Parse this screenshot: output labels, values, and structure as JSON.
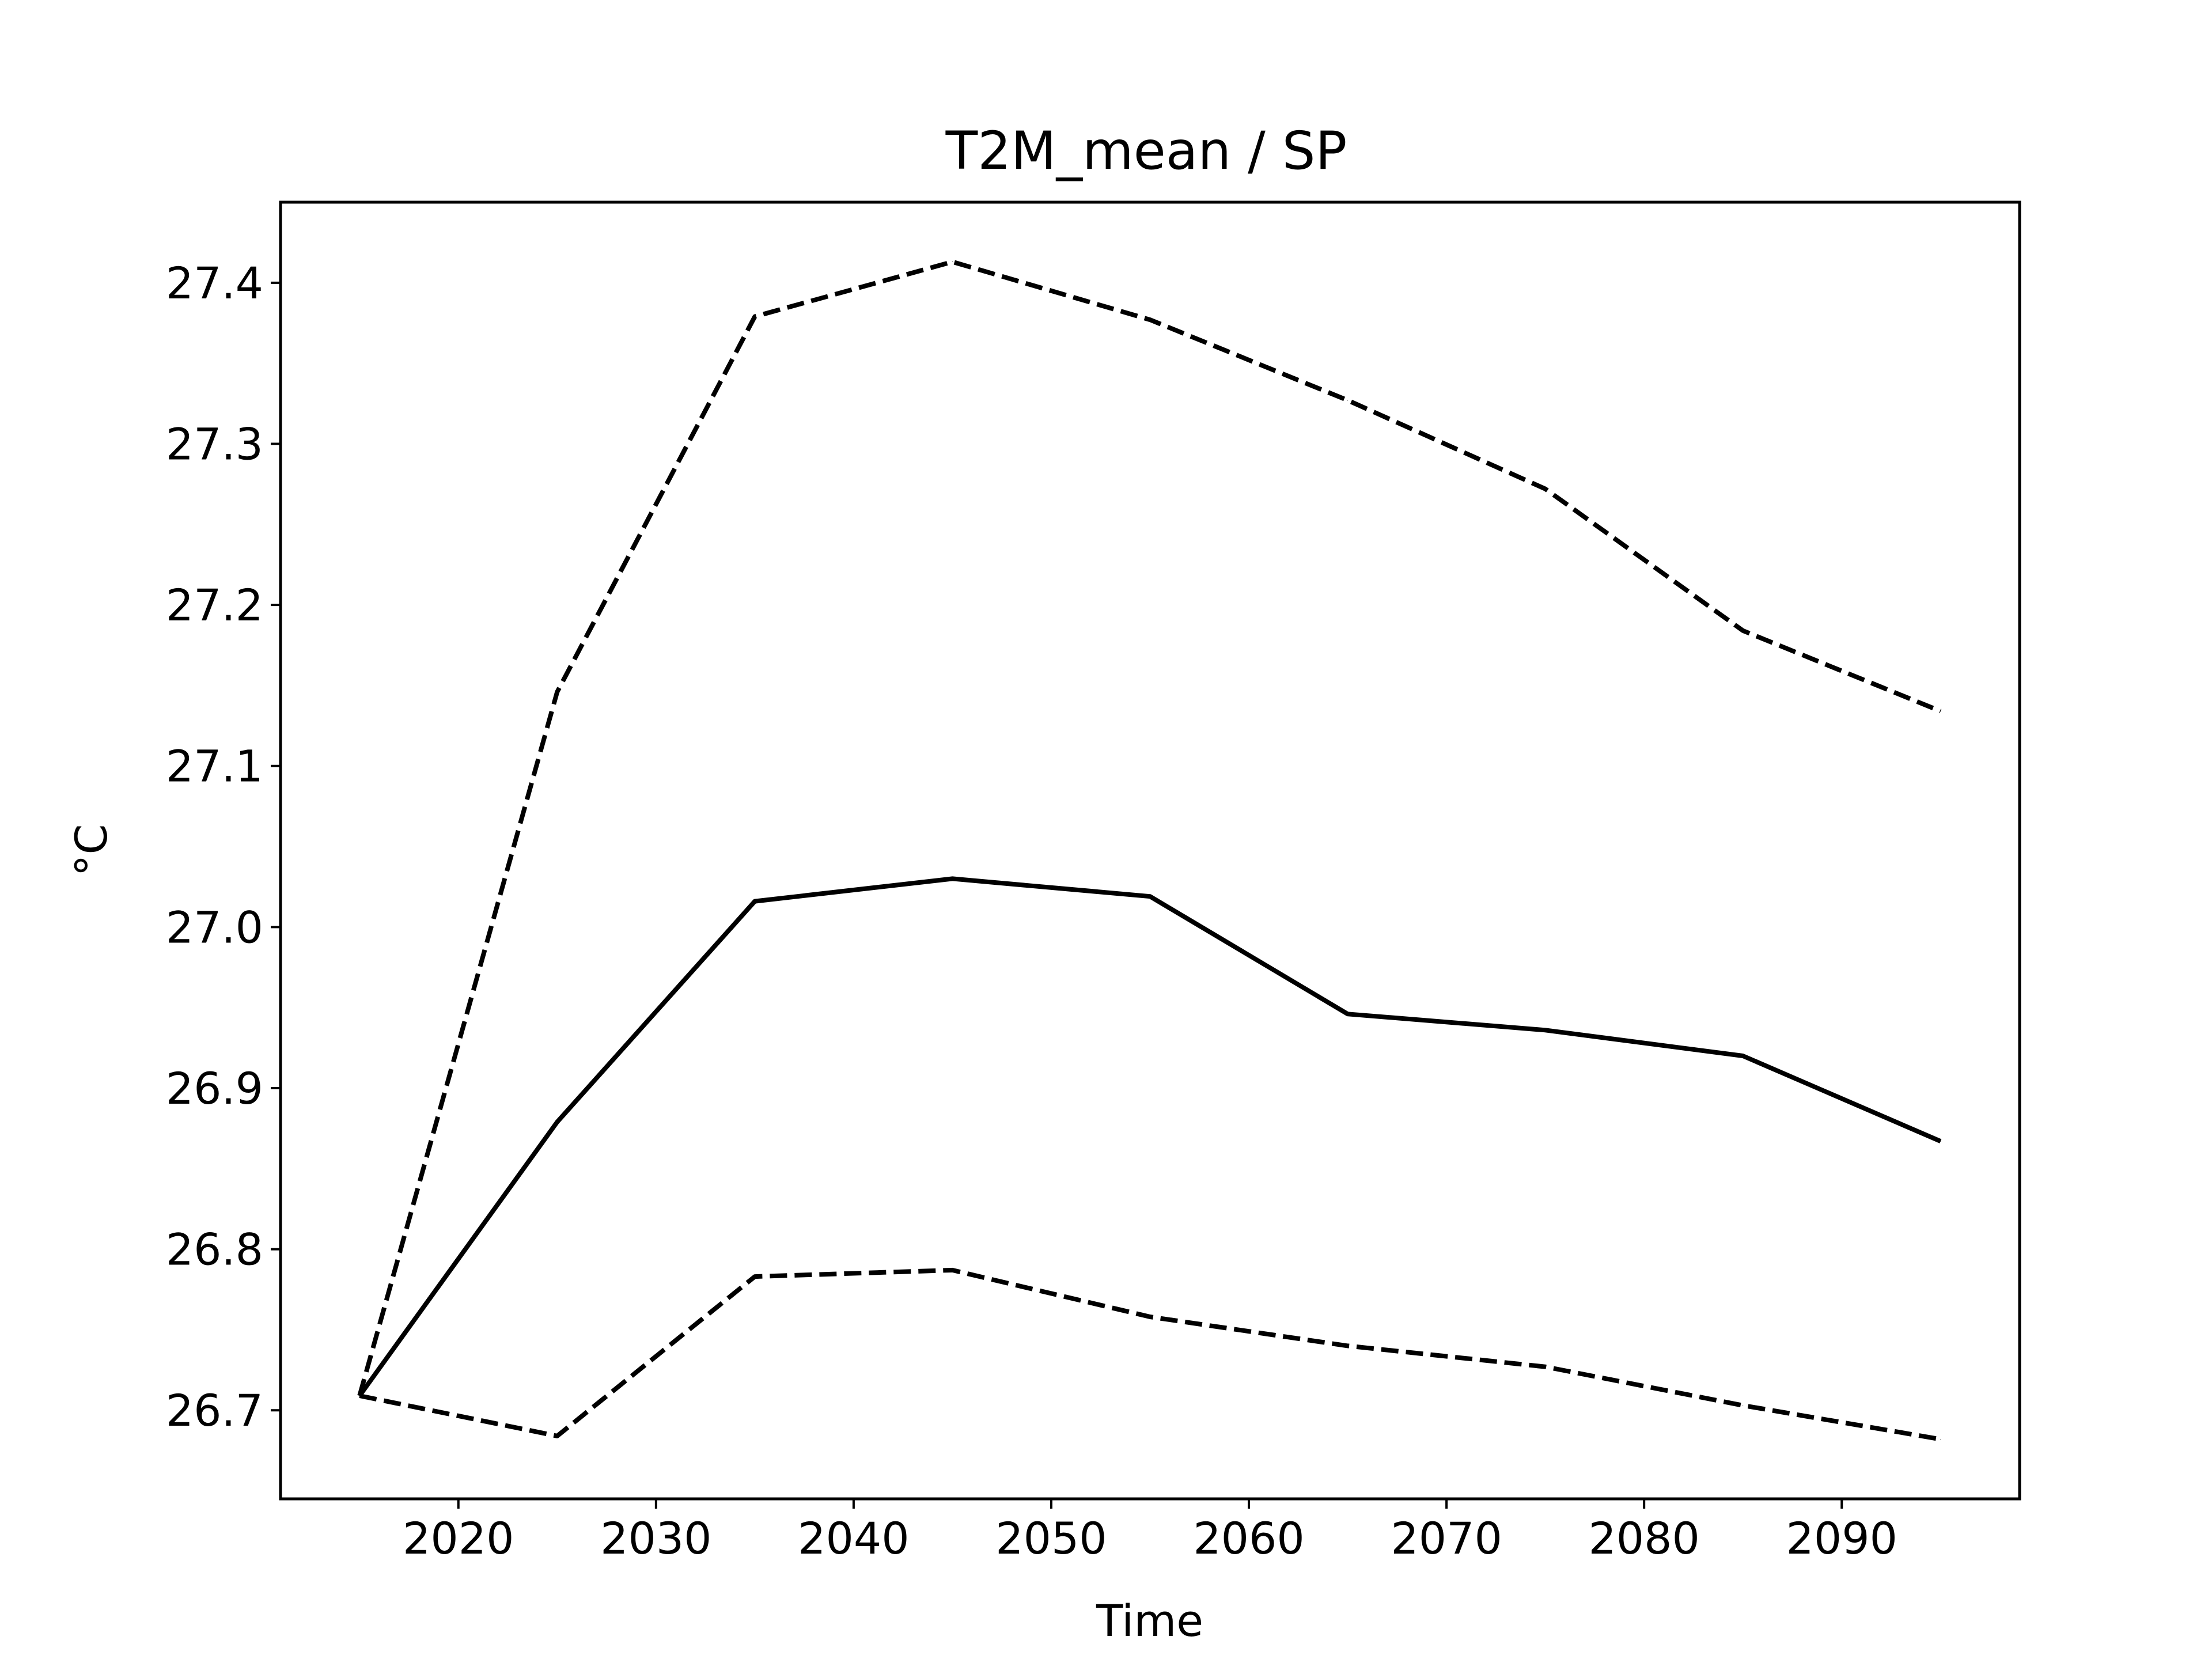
{
  "chart_data": {
    "type": "line",
    "title": "T2M_mean / SP",
    "xlabel": "Time",
    "ylabel": "°C",
    "xlim": [
      2011,
      2099
    ],
    "ylim": [
      26.645,
      27.45
    ],
    "xticks": [
      2020,
      2030,
      2040,
      2050,
      2060,
      2070,
      2080,
      2090
    ],
    "yticks": [
      26.7,
      26.8,
      26.9,
      27.0,
      27.1,
      27.2,
      27.3,
      27.4
    ],
    "x": [
      2015,
      2025,
      2035,
      2045,
      2055,
      2065,
      2075,
      2085,
      2095
    ],
    "series": [
      {
        "style": "solid",
        "color": "#000000",
        "values": [
          26.709,
          26.879,
          27.016,
          27.03,
          27.019,
          26.946,
          26.936,
          26.92,
          26.867
        ]
      },
      {
        "style": "dashed",
        "color": "#000000",
        "values": [
          26.709,
          27.146,
          27.379,
          27.413,
          27.377,
          27.327,
          27.272,
          27.184,
          27.134
        ]
      },
      {
        "style": "dashed",
        "color": "#000000",
        "values": [
          26.709,
          26.684,
          26.783,
          26.787,
          26.758,
          26.74,
          26.727,
          26.703,
          26.682
        ]
      }
    ],
    "grid": false,
    "legend": "none"
  }
}
